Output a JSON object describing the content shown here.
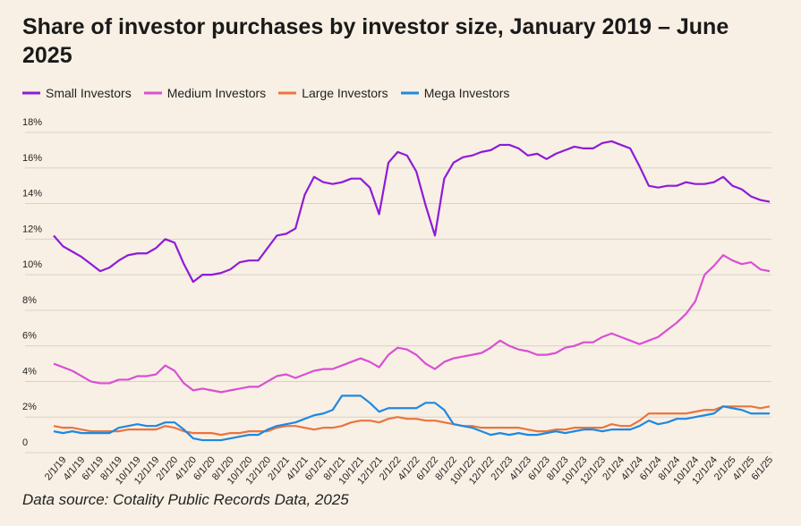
{
  "chart_data": {
    "type": "line",
    "title": "Share of investor purchases by investor size, January 2019 – June 2025",
    "source": "Data source: Cotality Public Records Data, 2025",
    "categories": [
      null,
      "2/1/19",
      null,
      "4/1/19",
      null,
      "6/1/19",
      null,
      "8/1/19",
      null,
      "10/1/19",
      null,
      "12/1/19",
      null,
      "2/1/20",
      null,
      "4/1/20",
      null,
      "6/1/20",
      null,
      "8/1/20",
      null,
      "10/1/20",
      null,
      "12/1/20",
      null,
      "2/1/21",
      null,
      "4/1/21",
      null,
      "6/1/21",
      null,
      "8/1/21",
      null,
      "10/1/21",
      null,
      "12/1/21",
      null,
      "2/1/22",
      null,
      "4/1/22",
      null,
      "6/1/22",
      null,
      "8/1/22",
      null,
      "10/1/22",
      null,
      "12/1/22",
      null,
      "2/1/23",
      null,
      "4/1/23",
      null,
      "6/1/23",
      null,
      "8/1/23",
      null,
      "10/1/23",
      null,
      "12/1/23",
      null,
      "2/1/24",
      null,
      "4/1/24",
      null,
      "6/1/24",
      null,
      "8/1/24",
      null,
      "10/1/24",
      null,
      "12/1/24",
      null,
      "2/1/25",
      null,
      "4/1/25",
      null,
      "6/1/25"
    ],
    "series": [
      {
        "name": "Small Investors",
        "color": "#8e1bd9",
        "values": [
          12.2,
          11.6,
          11.3,
          11.0,
          10.6,
          10.2,
          10.4,
          10.8,
          11.1,
          11.2,
          11.2,
          11.5,
          12.0,
          11.8,
          10.6,
          9.6,
          10.0,
          10.0,
          10.1,
          10.3,
          10.7,
          10.8,
          10.8,
          11.5,
          12.2,
          12.3,
          12.6,
          14.5,
          15.5,
          15.2,
          15.1,
          15.2,
          15.4,
          15.4,
          14.9,
          13.4,
          16.3,
          16.9,
          16.7,
          15.8,
          13.9,
          12.2,
          15.4,
          16.3,
          16.6,
          16.7,
          16.9,
          17.0,
          17.3,
          17.3,
          17.1,
          16.7,
          16.8,
          16.5,
          16.8,
          17.0,
          17.2,
          17.1,
          17.1,
          17.4,
          17.5,
          17.3,
          17.1,
          16.1,
          15.0,
          14.9,
          15.0,
          15.0,
          15.2,
          15.1,
          15.1,
          15.2,
          15.5,
          15.0,
          14.8,
          14.4,
          14.2,
          14.1
        ]
      },
      {
        "name": "Medium Investors",
        "color": "#d94fd4",
        "values": [
          5.0,
          4.8,
          4.6,
          4.3,
          4.0,
          3.9,
          3.9,
          4.1,
          4.1,
          4.3,
          4.3,
          4.4,
          4.9,
          4.6,
          3.9,
          3.5,
          3.6,
          3.5,
          3.4,
          3.5,
          3.6,
          3.7,
          3.7,
          4.0,
          4.3,
          4.4,
          4.2,
          4.4,
          4.6,
          4.7,
          4.7,
          4.9,
          5.1,
          5.3,
          5.1,
          4.8,
          5.5,
          5.9,
          5.8,
          5.5,
          5.0,
          4.7,
          5.1,
          5.3,
          5.4,
          5.5,
          5.6,
          5.9,
          6.3,
          6.0,
          5.8,
          5.7,
          5.5,
          5.5,
          5.6,
          5.9,
          6.0,
          6.2,
          6.2,
          6.5,
          6.7,
          6.5,
          6.3,
          6.1,
          6.3,
          6.5,
          6.9,
          7.3,
          7.8,
          8.5,
          10.0,
          10.5,
          11.1,
          10.8,
          10.6,
          10.7,
          10.3,
          10.2
        ]
      },
      {
        "name": "Large Investors",
        "color": "#ea7440",
        "values": [
          1.5,
          1.4,
          1.4,
          1.3,
          1.2,
          1.2,
          1.2,
          1.2,
          1.3,
          1.3,
          1.3,
          1.3,
          1.5,
          1.4,
          1.2,
          1.1,
          1.1,
          1.1,
          1.0,
          1.1,
          1.1,
          1.2,
          1.2,
          1.2,
          1.4,
          1.5,
          1.5,
          1.4,
          1.3,
          1.4,
          1.4,
          1.5,
          1.7,
          1.8,
          1.8,
          1.7,
          1.9,
          2.0,
          1.9,
          1.9,
          1.8,
          1.8,
          1.7,
          1.6,
          1.5,
          1.5,
          1.4,
          1.4,
          1.4,
          1.4,
          1.4,
          1.3,
          1.2,
          1.2,
          1.3,
          1.3,
          1.4,
          1.4,
          1.4,
          1.4,
          1.6,
          1.5,
          1.5,
          1.8,
          2.2,
          2.2,
          2.2,
          2.2,
          2.2,
          2.3,
          2.4,
          2.4,
          2.6,
          2.6,
          2.6,
          2.6,
          2.5,
          2.6
        ]
      },
      {
        "name": "Mega Investors",
        "color": "#1f88e0",
        "values": [
          1.2,
          1.1,
          1.2,
          1.1,
          1.1,
          1.1,
          1.1,
          1.4,
          1.5,
          1.6,
          1.5,
          1.5,
          1.7,
          1.7,
          1.3,
          0.8,
          0.7,
          0.7,
          0.7,
          0.8,
          0.9,
          1.0,
          1.0,
          1.3,
          1.5,
          1.6,
          1.7,
          1.9,
          2.1,
          2.2,
          2.4,
          3.2,
          3.2,
          3.2,
          2.8,
          2.3,
          2.5,
          2.5,
          2.5,
          2.5,
          2.8,
          2.8,
          2.4,
          1.6,
          1.5,
          1.4,
          1.2,
          1.0,
          1.1,
          1.0,
          1.1,
          1.0,
          1.0,
          1.1,
          1.2,
          1.1,
          1.2,
          1.3,
          1.3,
          1.2,
          1.3,
          1.3,
          1.3,
          1.5,
          1.8,
          1.6,
          1.7,
          1.9,
          1.9,
          2.0,
          2.1,
          2.2,
          2.6,
          2.5,
          2.4,
          2.2,
          2.2,
          2.2
        ]
      }
    ],
    "ylim": [
      0,
      18
    ],
    "yticks": [
      0,
      {
        "value": 2,
        "label": "2%"
      },
      {
        "value": 4,
        "label": "4%"
      },
      {
        "value": 6,
        "label": "6%"
      },
      {
        "value": 8,
        "label": "8%"
      },
      {
        "value": 10,
        "label": "10%"
      },
      {
        "value": 12,
        "label": "12%"
      },
      {
        "value": 14,
        "label": "14%"
      },
      {
        "value": 16,
        "label": "16%"
      },
      {
        "value": 18,
        "label": "18%"
      }
    ],
    "grid": true
  }
}
